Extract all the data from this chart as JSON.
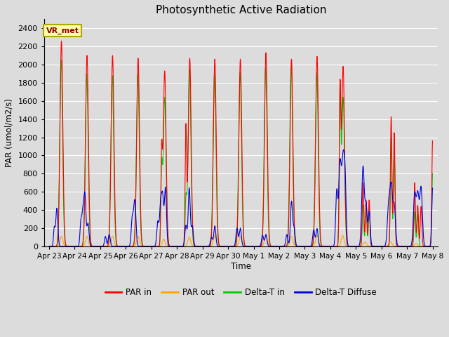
{
  "title": "Photosynthetic Active Radiation",
  "ylabel": "PAR (umol/m2/s)",
  "xlabel": "Time",
  "ylim": [
    0,
    2500
  ],
  "yticks": [
    0,
    200,
    400,
    600,
    800,
    1000,
    1200,
    1400,
    1600,
    1800,
    2000,
    2200,
    2400
  ],
  "xtick_labels": [
    "Apr 23",
    "Apr 24",
    "Apr 25",
    "Apr 26",
    "Apr 27",
    "Apr 28",
    "Apr 29",
    "Apr 30",
    "May 1",
    "May 2",
    "May 3",
    "May 4",
    "May 5",
    "May 6",
    "May 7",
    "May 8"
  ],
  "annotation_text": "VR_met",
  "line_colors": {
    "par_in": "#FF0000",
    "par_out": "#FFA500",
    "delta_t_in": "#00CC00",
    "delta_t_diffuse": "#0000DD"
  },
  "legend_labels": [
    "PAR in",
    "PAR out",
    "Delta-T in",
    "Delta-T Diffuse"
  ],
  "background_color": "#DCDCDC",
  "fig_background": "#DCDCDC"
}
